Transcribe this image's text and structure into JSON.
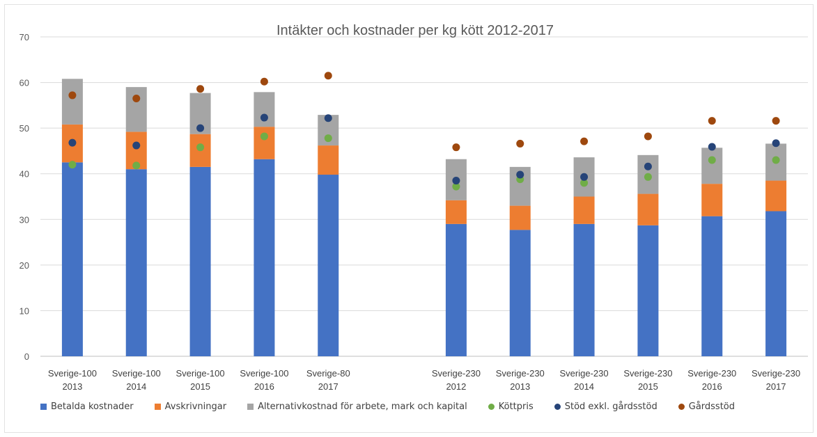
{
  "chart_data": {
    "type": "bar",
    "stacked": true,
    "title": "Intäkter och kostnader per kg kött 2012-2017",
    "xlabel": "",
    "ylabel": "",
    "ylim": [
      0,
      70
    ],
    "yticks": [
      "0",
      "10",
      "20",
      "30",
      "40",
      "50",
      "60",
      "70"
    ],
    "grid": true,
    "legend_position": "bottom",
    "categories": [
      {
        "line1": "Sverige-100",
        "line2": "2013"
      },
      {
        "line1": "Sverige-100",
        "line2": "2014"
      },
      {
        "line1": "Sverige-100",
        "line2": "2015"
      },
      {
        "line1": "Sverige-100",
        "line2": "2016"
      },
      {
        "line1": "Sverige-80",
        "line2": "2017"
      },
      {
        "line1": "",
        "line2": ""
      },
      {
        "line1": "Sverige-230",
        "line2": "2012"
      },
      {
        "line1": "Sverige-230",
        "line2": "2013"
      },
      {
        "line1": "Sverige-230",
        "line2": "2014"
      },
      {
        "line1": "Sverige-230",
        "line2": "2015"
      },
      {
        "line1": "Sverige-230",
        "line2": "2016"
      },
      {
        "line1": "Sverige-230",
        "line2": "2017"
      }
    ],
    "bar_series": [
      {
        "name": "Betalda kostnader",
        "color": "#4472C4",
        "values": [
          42.5,
          41,
          41.5,
          43.2,
          39.8,
          null,
          29,
          27.7,
          29,
          28.7,
          30.7,
          31.8
        ]
      },
      {
        "name": "Avskrivningar",
        "color": "#ED7D31",
        "values": [
          8.3,
          8.2,
          7.2,
          7.1,
          6.4,
          null,
          5.2,
          5.3,
          6,
          6.9,
          7.1,
          6.7
        ]
      },
      {
        "name": "Alternativkostnad för arbete, mark och kapital",
        "color": "#A5A5A5",
        "values": [
          10,
          9.8,
          9,
          7.6,
          6.7,
          null,
          9,
          8.5,
          8.6,
          8.5,
          7.9,
          8.1
        ]
      }
    ],
    "point_series": [
      {
        "name": "Köttpris",
        "color": "#70AD47",
        "values": [
          42,
          41.8,
          45.8,
          48.2,
          47.8,
          null,
          37.2,
          38.8,
          38,
          39.3,
          43,
          43
        ]
      },
      {
        "name": "Stöd exkl. gårdsstöd",
        "color": "#264478",
        "values": [
          46.8,
          46.2,
          50,
          52.3,
          52.2,
          null,
          38.5,
          39.8,
          39.3,
          41.6,
          45.9,
          46.7
        ]
      },
      {
        "name": "Gårdsstöd",
        "color": "#9E480E",
        "values": [
          57.2,
          56.5,
          58.6,
          60.2,
          61.5,
          null,
          45.8,
          46.6,
          47.1,
          48.2,
          51.6,
          51.6
        ]
      }
    ]
  }
}
